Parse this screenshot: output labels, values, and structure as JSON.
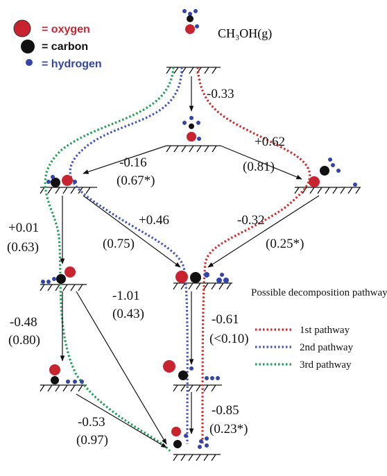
{
  "legend": {
    "oxygen": "= oxygen",
    "carbon": "= carbon",
    "hydrogen": "= hydrogen"
  },
  "gas": "CH₃OH(g)",
  "steps": [
    {
      "energy": "-0.33"
    },
    {
      "energy": "+0.62",
      "barrier": "(0.81)"
    },
    {
      "energy": "-0.16",
      "barrier": "(0.67*)"
    },
    {
      "energy": "+0.01",
      "barrier": "(0.63)"
    },
    {
      "energy": "+0.46",
      "barrier": "(0.75)"
    },
    {
      "energy": "-0.32",
      "barrier": "(0.25*)"
    },
    {
      "energy": "-1.01",
      "barrier": "(0.43)"
    },
    {
      "energy": "-0.48",
      "barrier": "(0.80)"
    },
    {
      "energy": "-0.61",
      "barrier": "(<0.10)"
    },
    {
      "energy": "-0.85",
      "barrier": "(0.23*)"
    },
    {
      "energy": "-0.53",
      "barrier": "(0.97)"
    }
  ],
  "pathways": {
    "title": "Possible decomposition pathways:",
    "items": [
      "1st pathway",
      "2nd pathway",
      "3rd pathway"
    ]
  }
}
